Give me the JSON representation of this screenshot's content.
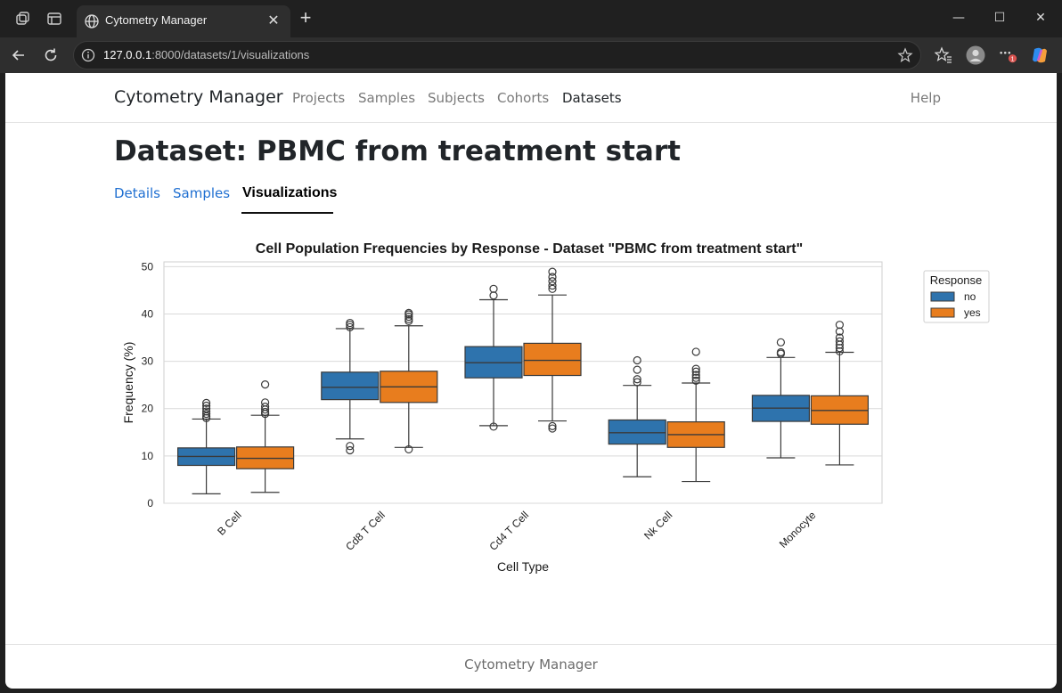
{
  "browser": {
    "tab_title": "Cytometry Manager",
    "url_host": "127.0.0.1",
    "url_rest": ":8000/datasets/1/visualizations",
    "notification_count": "1"
  },
  "navbar": {
    "brand": "Cytometry Manager",
    "links": [
      "Projects",
      "Samples",
      "Subjects",
      "Cohorts",
      "Datasets"
    ],
    "active": "Datasets",
    "help": "Help"
  },
  "page": {
    "title": "Dataset: PBMC from treatment start",
    "tabs": [
      "Details",
      "Samples",
      "Visualizations"
    ],
    "active_tab": "Visualizations"
  },
  "footer": {
    "text": "Cytometry Manager"
  },
  "chart_data": {
    "type": "box",
    "title": "Cell Population Frequencies by Response - Dataset \"PBMC from treatment start\"",
    "xlabel": "Cell Type",
    "ylabel": "Frequency (%)",
    "ylim": [
      0,
      51
    ],
    "yticks": [
      0,
      10,
      20,
      30,
      40,
      50
    ],
    "grid": true,
    "categories": [
      "B Cell",
      "Cd8 T Cell",
      "Cd4 T Cell",
      "Nk Cell",
      "Monocyte"
    ],
    "legend": {
      "title": "Response",
      "placement": "upper-right-outside"
    },
    "series": [
      {
        "name": "no",
        "color": "#2e73ad",
        "boxes": [
          {
            "min": 2.0,
            "q1": 8.0,
            "median": 9.9,
            "q3": 11.7,
            "max": 17.8,
            "outliers": [
              18.0,
              18.4,
              18.9,
              19.4,
              20.0,
              20.6,
              21.2
            ]
          },
          {
            "min": 13.6,
            "q1": 21.9,
            "median": 24.5,
            "q3": 27.7,
            "max": 36.9,
            "outliers": [
              11.2,
              12.1,
              37.2,
              37.7,
              38.1
            ]
          },
          {
            "min": 16.4,
            "q1": 26.5,
            "median": 29.7,
            "q3": 33.1,
            "max": 43.0,
            "outliers": [
              16.2,
              43.9,
              45.3
            ]
          },
          {
            "min": 5.6,
            "q1": 12.5,
            "median": 14.9,
            "q3": 17.6,
            "max": 24.9,
            "outliers": [
              25.6,
              26.2,
              28.2,
              30.2
            ]
          },
          {
            "min": 9.6,
            "q1": 17.3,
            "median": 20.1,
            "q3": 22.8,
            "max": 30.8,
            "outliers": [
              31.6,
              31.9,
              34.0
            ]
          }
        ]
      },
      {
        "name": "yes",
        "color": "#e87d1e",
        "boxes": [
          {
            "min": 2.3,
            "q1": 7.3,
            "median": 9.5,
            "q3": 11.9,
            "max": 18.6,
            "outliers": [
              18.9,
              19.3,
              19.8,
              20.4,
              21.3,
              25.1
            ]
          },
          {
            "min": 11.8,
            "q1": 21.3,
            "median": 24.6,
            "q3": 27.9,
            "max": 37.5,
            "outliers": [
              11.4,
              38.5,
              38.9,
              39.4,
              39.9,
              40.2
            ]
          },
          {
            "min": 17.4,
            "q1": 27.0,
            "median": 30.2,
            "q3": 33.8,
            "max": 44.0,
            "outliers": [
              15.8,
              16.3,
              45.3,
              46.0,
              46.9,
              47.8,
              48.9
            ]
          },
          {
            "min": 4.6,
            "q1": 11.8,
            "median": 14.5,
            "q3": 17.2,
            "max": 25.4,
            "outliers": [
              25.9,
              26.5,
              27.1,
              27.8,
              28.4,
              32.0
            ]
          },
          {
            "min": 8.1,
            "q1": 16.7,
            "median": 19.6,
            "q3": 22.7,
            "max": 31.9,
            "outliers": [
              32.1,
              32.8,
              33.5,
              34.2,
              35.0,
              36.3,
              37.7
            ]
          }
        ]
      }
    ]
  }
}
